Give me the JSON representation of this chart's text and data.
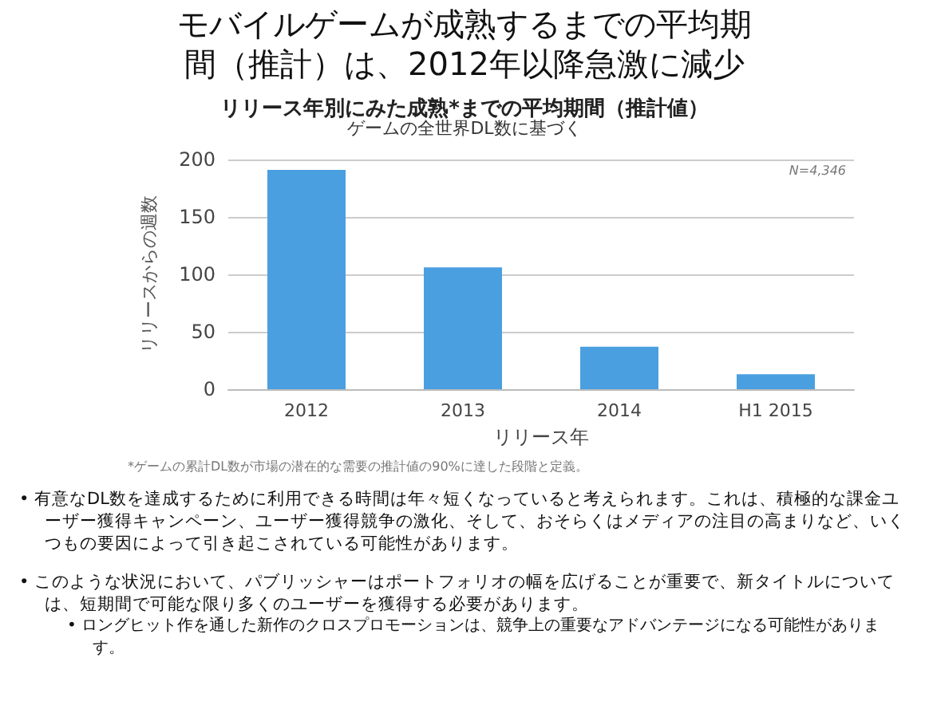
{
  "chart_data": {
    "type": "bar",
    "title": "モバイルゲームが成熟するまでの平均期間（推計）は、2012年以降急激に減少",
    "subtitle": "リリース年別にみた成熟*までの平均期間（推計値）",
    "categories": [
      "2012",
      "2013",
      "2014",
      "H1 2015"
    ],
    "values": [
      191,
      106,
      37,
      13
    ],
    "color": "#4a9fe0",
    "xlabel": "リリース年",
    "ylabel": "リリースからの週数",
    "ylim": [
      0,
      200
    ],
    "yticks": [
      0,
      50,
      100,
      150,
      200
    ],
    "grid": "y",
    "annotations": [
      "ゲームの全世界DL数に基づく",
      "N=4,346",
      "*ゲームの累計DL数が市場の潜在的な需要の推計値の90%に達した段階と定義。",
      "•  有意なDL数を達成するために利用できる時間は年々短くなっていると考えられます。これは、積極的な課金ユーザー獲得キャンペーン、ユーザー獲得競争の激化、そして、おそらくはメディアの注目の高まりなど、いくつもの要因によって引き起こされている可能性があります。",
      "•  このような状況において、パブリッシャーはポートフォリオの幅を広げることが重要で、新タイトルについては、短期間で可能な限り多くのユーザーを獲得する必要があります。",
      "•  ロングヒット作を通した新作のクロスプロモーションは、競争上の重要なアドバンテージになる可能性があります。"
    ]
  }
}
